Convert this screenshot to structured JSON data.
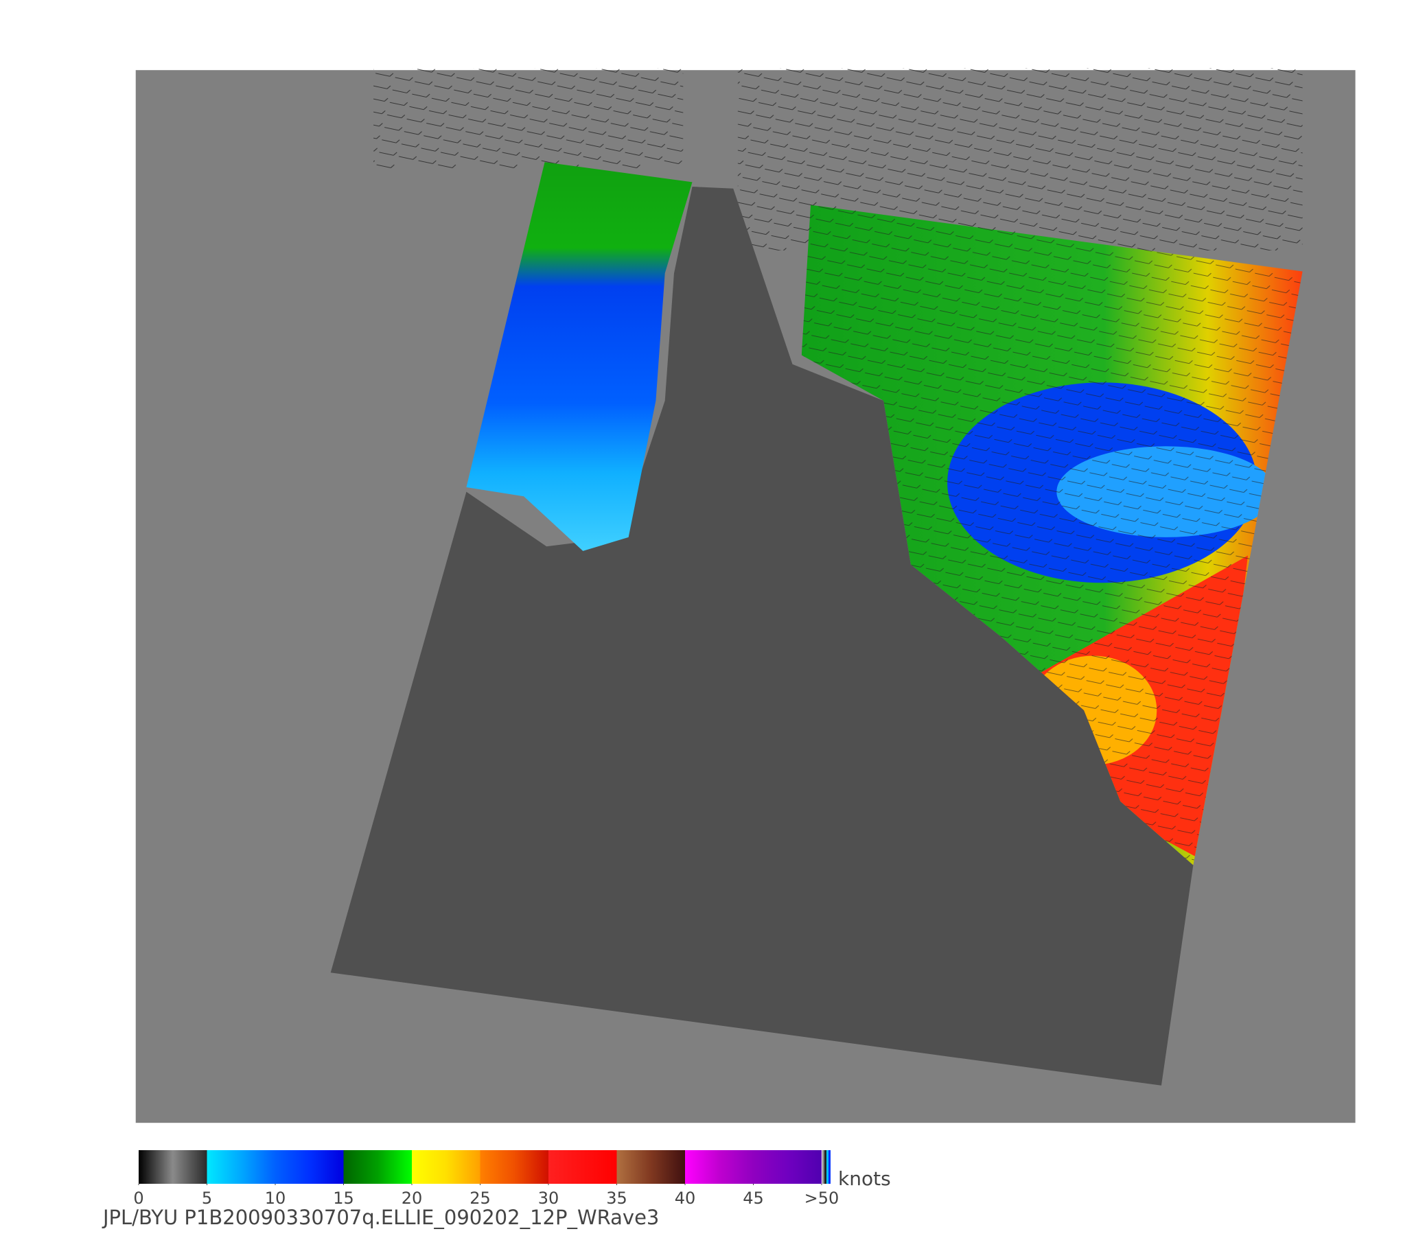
{
  "colorbar": {
    "ticks": [
      0,
      5,
      10,
      15,
      20,
      25,
      30,
      35,
      40,
      45,
      {
        "value": 50,
        "label": ">50"
      }
    ],
    "range": [
      0,
      50
    ],
    "unit": "knots",
    "segments": [
      {
        "from": "#000000",
        "mid": "#8a8a8a",
        "to": "#2a2a2a"
      },
      {
        "from": "#00e8ff",
        "mid": "#00a8ff",
        "to": "#0060ff"
      },
      {
        "from": "#0060ff",
        "mid": "#0030ff",
        "to": "#0000e0"
      },
      {
        "from": "#006400",
        "mid": "#00a000",
        "to": "#00ff00"
      },
      {
        "from": "#ffff00",
        "mid": "#ffe000",
        "to": "#ffa000"
      },
      {
        "from": "#ff8000",
        "mid": "#f05000",
        "to": "#d01000"
      },
      {
        "from": "#ff2020",
        "mid": "#ff1010",
        "to": "#ff0000"
      },
      {
        "from": "#b07040",
        "mid": "#803820",
        "to": "#401010"
      },
      {
        "from": "#ff00ff",
        "mid": "#c000d0",
        "to": "#9000c0"
      },
      {
        "from": "#9000c0",
        "mid": "#7000c0",
        "to": "#5000b0"
      }
    ]
  },
  "caption": "JPL/BYU  P1B20090330707q.ELLIE_090202_12P_WRave3"
}
